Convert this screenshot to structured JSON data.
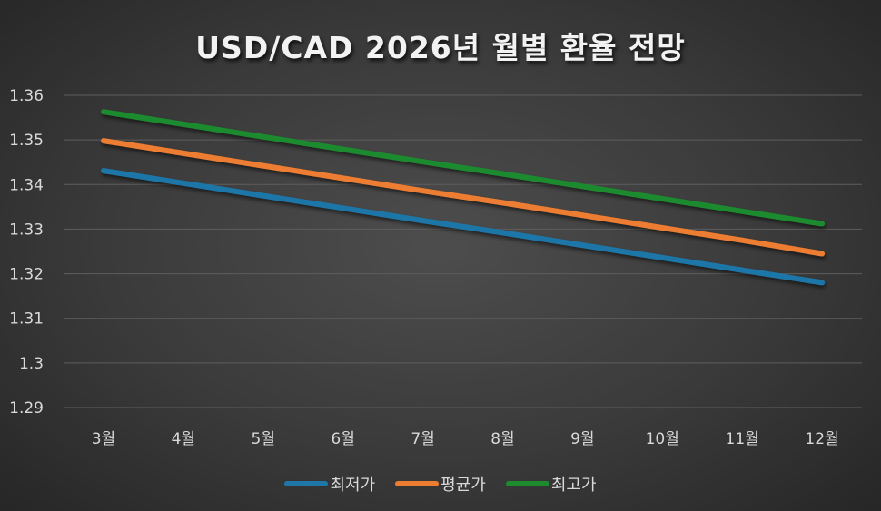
{
  "chart_data": {
    "type": "line",
    "title": "USD/CAD 2026년 월별 환율 전망",
    "xlabel": "",
    "ylabel": "",
    "categories": [
      "3월",
      "4월",
      "5월",
      "6월",
      "7월",
      "8월",
      "9월",
      "10월",
      "11월",
      "12월"
    ],
    "series": [
      {
        "name": "최저가",
        "color": "#1f77a8",
        "values": [
          1.3431,
          1.3403,
          1.3375,
          1.3347,
          1.3319,
          1.3292,
          1.3264,
          1.3236,
          1.3208,
          1.318
        ]
      },
      {
        "name": "평균가",
        "color": "#ed7d31",
        "values": [
          1.3498,
          1.347,
          1.3442,
          1.3414,
          1.3386,
          1.3359,
          1.3331,
          1.3303,
          1.3275,
          1.3245
        ]
      },
      {
        "name": "최고가",
        "color": "#1e8a2e",
        "values": [
          1.3563,
          1.3535,
          1.3507,
          1.3479,
          1.3451,
          1.3424,
          1.3396,
          1.3368,
          1.334,
          1.3312
        ]
      }
    ],
    "y_ticks": [
      "1.29",
      "1.3",
      "1.31",
      "1.32",
      "1.33",
      "1.34",
      "1.35",
      "1.36"
    ],
    "ylim": [
      1.29,
      1.36
    ],
    "grid": true,
    "legend_position": "bottom"
  },
  "legend": [
    {
      "label": "최저가",
      "color": "#1f77a8"
    },
    {
      "label": "평균가",
      "color": "#ed7d31"
    },
    {
      "label": "최고가",
      "color": "#1e8a2e"
    }
  ]
}
